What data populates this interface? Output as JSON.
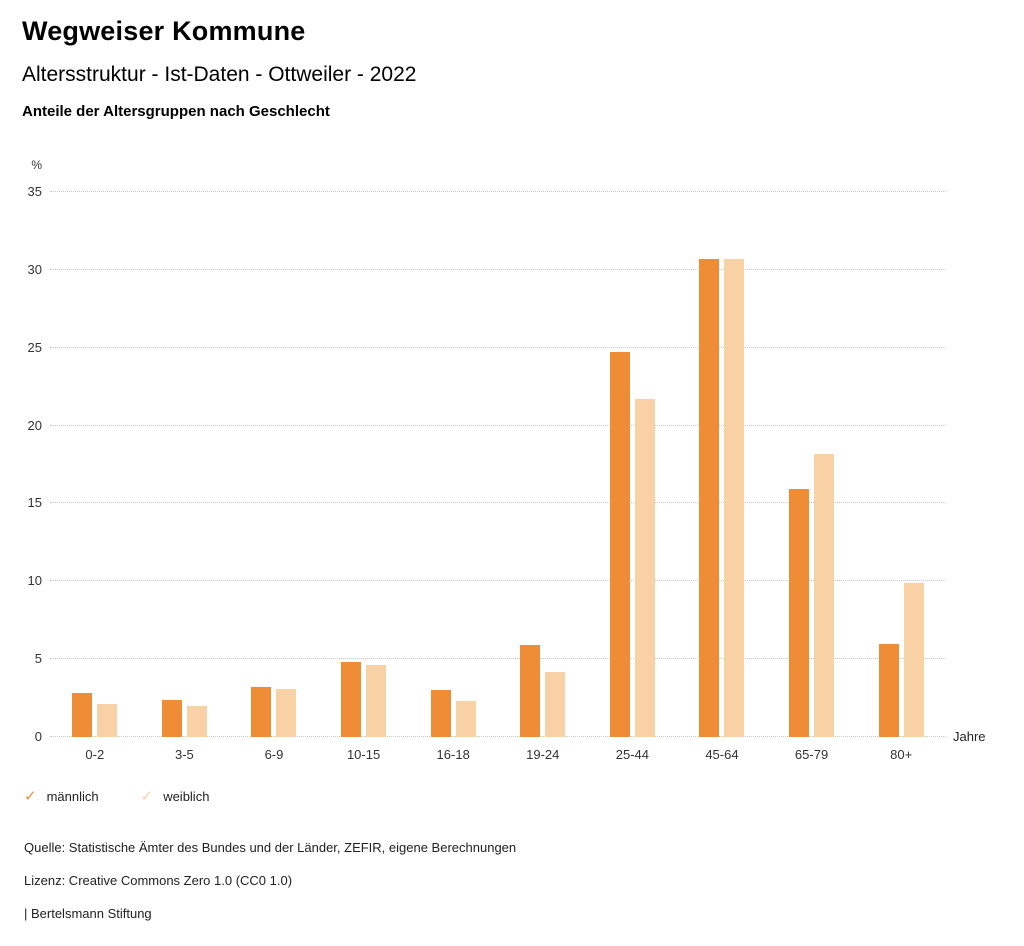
{
  "header": {
    "title": "Wegweiser Kommune",
    "subtitle": "Altersstruktur - Ist-Daten - Ottweiler - 2022",
    "description": "Anteile der Altersgruppen nach Geschlecht"
  },
  "chart_data": {
    "type": "bar",
    "title": "Anteile der Altersgruppen nach Geschlecht",
    "categories": [
      "0-2",
      "3-5",
      "6-9",
      "10-15",
      "16-18",
      "19-24",
      "25-44",
      "45-64",
      "65-79",
      "80+"
    ],
    "series": [
      {
        "name": "männlich",
        "color": "#ee8d36",
        "values": [
          2.8,
          2.4,
          3.2,
          4.8,
          3.0,
          5.9,
          24.7,
          30.7,
          15.9,
          6.0
        ]
      },
      {
        "name": "weiblich",
        "color": "#f8d2a4",
        "values": [
          2.1,
          2.0,
          3.1,
          4.6,
          2.3,
          4.2,
          21.7,
          30.7,
          18.2,
          9.9
        ]
      }
    ],
    "xlabel": "Jahre",
    "ylabel": "%",
    "ylim": [
      0,
      35
    ],
    "yticks": [
      0,
      5,
      10,
      15,
      20,
      25,
      30,
      35
    ],
    "grid": true,
    "legend_position": "bottom"
  },
  "legend": {
    "marker": "✓",
    "items": [
      {
        "label": "männlich",
        "color": "#ee8d36"
      },
      {
        "label": "weiblich",
        "color": "#f8d2a4"
      }
    ]
  },
  "footer": {
    "source": "Quelle: Statistische Ämter des Bundes und der Länder, ZEFIR, eigene Berechnungen",
    "license": "Lizenz: Creative Commons Zero 1.0 (CC0 1.0)",
    "attribution": "| Bertelsmann Stiftung"
  }
}
